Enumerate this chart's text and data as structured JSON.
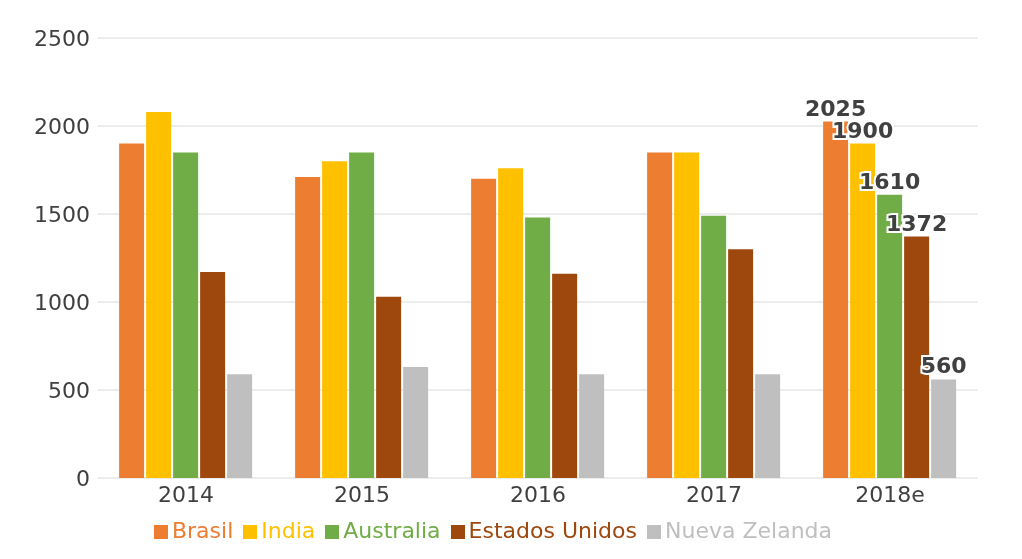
{
  "chart_data": {
    "type": "bar",
    "categories": [
      "2014",
      "2015",
      "2016",
      "2017",
      "2018e"
    ],
    "series": [
      {
        "name": "Brasil",
        "color": "#ed7d31",
        "values": [
          1900,
          1710,
          1700,
          1850,
          2025
        ],
        "value_labels": [
          null,
          null,
          null,
          null,
          "2025"
        ]
      },
      {
        "name": "India",
        "color": "#ffc000",
        "values": [
          2080,
          1800,
          1760,
          1850,
          1900
        ],
        "value_labels": [
          null,
          null,
          null,
          null,
          "1900"
        ]
      },
      {
        "name": "Australia",
        "color": "#70ad47",
        "values": [
          1850,
          1850,
          1480,
          1490,
          1610
        ],
        "value_labels": [
          null,
          null,
          null,
          null,
          "1610"
        ]
      },
      {
        "name": "Estados Unidos",
        "color": "#9e480e",
        "values": [
          1170,
          1030,
          1160,
          1300,
          1372
        ],
        "value_labels": [
          null,
          null,
          null,
          null,
          "1372"
        ]
      },
      {
        "name": "Nueva Zelanda",
        "color": "#bfbfbf",
        "values": [
          590,
          630,
          590,
          590,
          560
        ],
        "value_labels": [
          null,
          null,
          null,
          null,
          "560"
        ]
      }
    ],
    "ylim": [
      0,
      2500
    ],
    "yticks": [
      0,
      500,
      1000,
      1500,
      2000,
      2500
    ],
    "grid": "y",
    "legend": "bottom"
  }
}
